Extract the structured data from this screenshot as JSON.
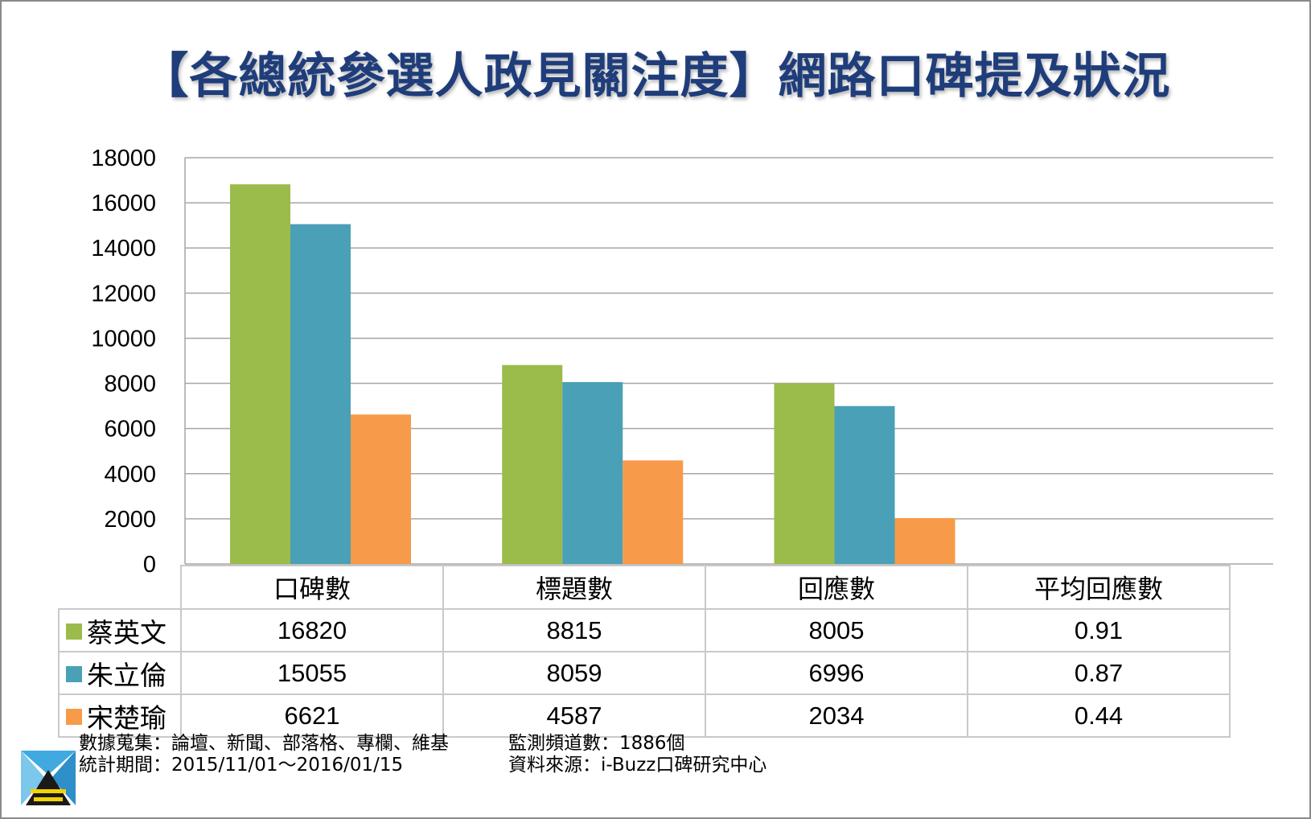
{
  "title": "【各總統參選人政見關注度】網路口碑提及狀況",
  "colors": {
    "series_1": "#9bbb4a",
    "series_2": "#4aa0b7",
    "series_3": "#f79a4a",
    "grid": "#a6a6a6",
    "title": "#1f3d7a"
  },
  "chart_data": {
    "type": "bar",
    "categories": [
      "口碑數",
      "標題數",
      "回應數",
      "平均回應數"
    ],
    "series": [
      {
        "name": "蔡英文",
        "values": [
          16820,
          8815,
          8005,
          0.91
        ]
      },
      {
        "name": "朱立倫",
        "values": [
          15055,
          8059,
          6996,
          0.87
        ]
      },
      {
        "name": "宋楚瑜",
        "values": [
          6621,
          4587,
          2034,
          0.44
        ]
      }
    ],
    "ylim": [
      0,
      18000
    ],
    "yticks": [
      "0",
      "2000",
      "4000",
      "6000",
      "8000",
      "10000",
      "12000",
      "14000",
      "16000",
      "18000"
    ],
    "grid": true,
    "legend": "data-table-left"
  },
  "table": {
    "rows": [
      {
        "label": "蔡英文",
        "cells": [
          "16820",
          "8815",
          "8005",
          "0.91"
        ]
      },
      {
        "label": "朱立倫",
        "cells": [
          "15055",
          "8059",
          "6996",
          "0.87"
        ]
      },
      {
        "label": "宋楚瑜",
        "cells": [
          "6621",
          "4587",
          "2034",
          "0.44"
        ]
      }
    ]
  },
  "footer": {
    "line1": "數據蒐集：論壇、新聞、部落格、專欄、維基",
    "line2": "統計期間：2015/11/01～2016/01/15",
    "line3": "監測頻道數：1886個",
    "line4": "資料來源：i-Buzz口碑研究中心"
  }
}
